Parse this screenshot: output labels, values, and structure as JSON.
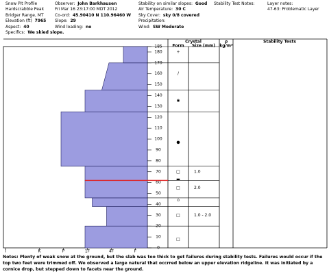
{
  "header": {
    "col1": [
      {
        "value": "Snow Pit Profile"
      },
      {
        "value": "Hardscrabble Peak"
      },
      {
        "value": "Bridger Range, MT"
      },
      {
        "label": "Elevation (ft)",
        "value": "7965"
      },
      {
        "label": "Aspect:",
        "value": "40"
      },
      {
        "label": "Specifics:",
        "value": "We skied slope."
      }
    ],
    "col2": [
      {
        "label": "Observer:",
        "value": "John Barkhausen"
      },
      {
        "value": "Fri Mar 16 23:17:00 MDT 2012"
      },
      {
        "label": "Co-ord:",
        "value": "45.90410 N 110.96460 W"
      },
      {
        "label": "Slope:",
        "value": "29"
      },
      {
        "label": "Wind loading:",
        "value": "no"
      }
    ],
    "col3": [
      {
        "label": "Stability on similar slopes:",
        "value": "Good"
      },
      {
        "label": "Air Temperature:",
        "value": "30 C"
      },
      {
        "label": "Sky Cover:",
        "value": "sky 0/8 covered"
      },
      {
        "label": "Precipitation:"
      },
      {
        "label": "Wind:",
        "value": "SW Moderate"
      }
    ],
    "col4": [
      {
        "label": "Stability Test Notes:"
      }
    ],
    "col5": [
      {
        "label": "Layer notes:"
      },
      {
        "value": "47-63: Problematic Layer"
      }
    ]
  },
  "chart_data": {
    "type": "snow-profile",
    "columns": {
      "crystal": "Crystal",
      "form": "Form",
      "size": "Size (mm)",
      "rho": "ρ",
      "rho_unit": "kg/m³",
      "stability": "Stability Tests"
    },
    "color": "#9c9ce0",
    "xlim": [
      6,
      0
    ],
    "xticks": [
      {
        "value": 5.9,
        "label": "I"
      },
      {
        "value": 4.5,
        "label": "K"
      },
      {
        "value": 3.5,
        "label": "P"
      },
      {
        "value": 2.5,
        "label": "1F"
      },
      {
        "value": 1.5,
        "label": "4F"
      },
      {
        "value": 0.5,
        "label": "F"
      }
    ],
    "ylim": [
      0,
      185
    ],
    "yticks": [
      0,
      10,
      20,
      30,
      40,
      50,
      60,
      70,
      80,
      90,
      100,
      110,
      120,
      130,
      140,
      150,
      160,
      170,
      180,
      185
    ],
    "layers": [
      {
        "bottom": 0,
        "top": 20,
        "hardness": [
          2.6,
          2.6
        ]
      },
      {
        "bottom": 20,
        "top": 38,
        "hardness": [
          1.7,
          1.7
        ]
      },
      {
        "bottom": 38,
        "top": 46,
        "hardness": [
          2.3,
          2.3
        ]
      },
      {
        "bottom": 46,
        "top": 62,
        "hardness": [
          2.6,
          2.6
        ]
      },
      {
        "bottom": 62,
        "top": 75,
        "hardness": [
          2.6,
          2.6
        ]
      },
      {
        "bottom": 75,
        "top": 125,
        "hardness": [
          3.6,
          3.6
        ]
      },
      {
        "bottom": 125,
        "top": 145,
        "hardness": [
          2.6,
          2.6
        ]
      },
      {
        "bottom": 145,
        "top": 170,
        "hardness": [
          1.9,
          1.6
        ]
      },
      {
        "bottom": 170,
        "top": 185,
        "hardness": [
          1.0,
          1.0
        ]
      }
    ],
    "problem_layer": 62,
    "problem_color": "#e02020",
    "crystals": [
      {
        "height": 180,
        "form": "+"
      },
      {
        "height": 160,
        "form": "/"
      },
      {
        "height": 135,
        "form": "✱"
      },
      {
        "height": 97,
        "form": "●"
      },
      {
        "height": 70,
        "form": "□",
        "size": "1.0"
      },
      {
        "height": 63,
        "form": "▬"
      },
      {
        "height": 55,
        "form": "□",
        "size": "2.0"
      },
      {
        "height": 44,
        "form": "⌂"
      },
      {
        "height": 30,
        "form": "□",
        "size": "1.0 - 2.0"
      },
      {
        "height": 8,
        "form": "□"
      }
    ]
  },
  "notes": {
    "label": "Notes:",
    "text": "Plenty of weak snow at the ground, but the slab was too thick to get failures during stability tests.  Failures would occur if the top two feet were trimmed off.  We observed a large natural that occrred below an upper elevation ridgeline.  It was initiated by a cornice drop, but stepped down to facets near the ground."
  }
}
